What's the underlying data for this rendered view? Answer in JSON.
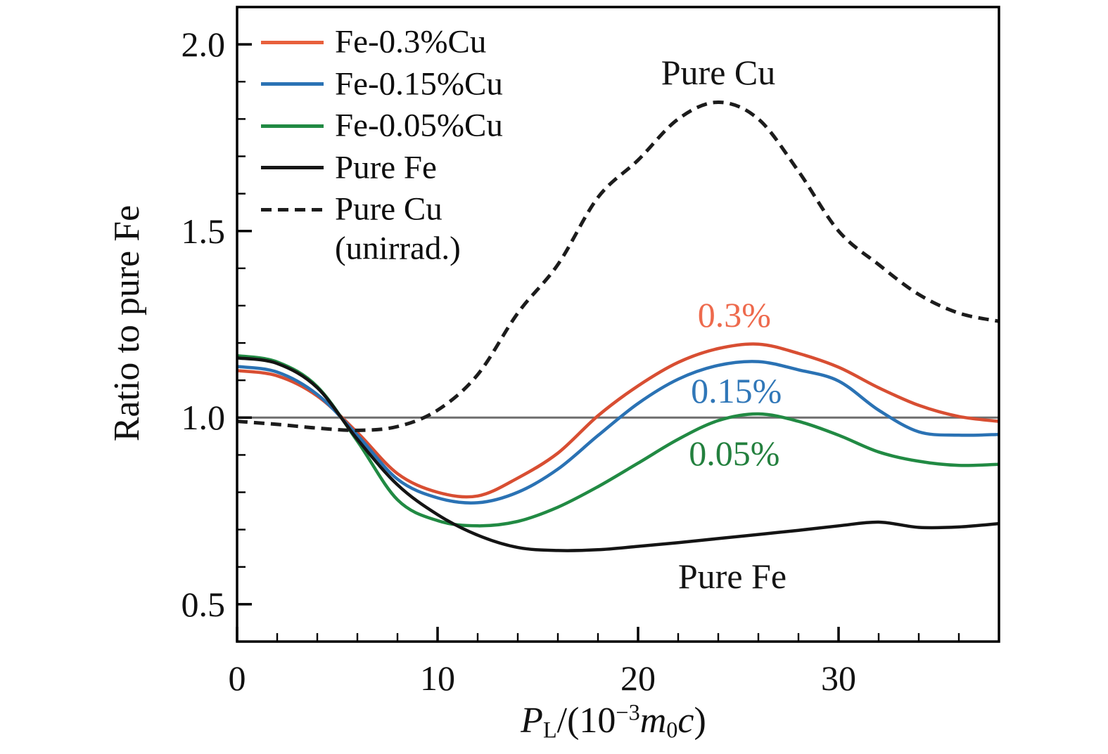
{
  "figure": {
    "background": "#ffffff",
    "x_axis": {
      "label_plain": "P_L/(10^-3 m_0 c)",
      "label_parts": [
        {
          "t": "P",
          "style": "italic"
        },
        {
          "t": "L",
          "style": "sub"
        },
        {
          "t": "/(10",
          "style": "normal"
        },
        {
          "t": "−3",
          "style": "sup"
        },
        {
          "t": "m",
          "style": "italic"
        },
        {
          "t": "0",
          "style": "sub"
        },
        {
          "t": "c",
          "style": "italic"
        },
        {
          "t": ")",
          "style": "normal"
        }
      ]
    }
  },
  "legend": {
    "items": [
      {
        "label": "Fe-0.3%Cu",
        "color": "#e8603c",
        "dash": false
      },
      {
        "label": "Fe-0.15%Cu",
        "color": "#2a72b4",
        "dash": false
      },
      {
        "label": "Fe-0.05%Cu",
        "color": "#218a43",
        "dash": false
      },
      {
        "label": "Pure Fe",
        "color": "#161616",
        "dash": false
      },
      {
        "label": "Pure Cu",
        "label2": "(unirrad.)",
        "color": "#1c1c1c",
        "dash": true
      }
    ]
  },
  "chart_data": {
    "type": "line",
    "title": "",
    "xlabel": "P_L/(10^-3 m_0 c)",
    "ylabel": "Ratio to pure Fe",
    "xlim": [
      0,
      38
    ],
    "ylim": [
      0.4,
      2.1
    ],
    "grid": false,
    "legend_position": "upper-left",
    "reference_line": {
      "y": 1.0,
      "color": "#6e6e6e"
    },
    "x_ticks": {
      "major": [
        0,
        10,
        20,
        30
      ],
      "labels": [
        "0",
        "10",
        "20",
        "30"
      ],
      "minor_step": 2
    },
    "y_ticks": {
      "major": [
        0.5,
        1.0,
        1.5,
        2.0
      ],
      "labels": [
        "0.5",
        "1.0",
        "1.5",
        "2.0"
      ],
      "minor_step": 0.1
    },
    "x": [
      0,
      2,
      4,
      6,
      8,
      10,
      12,
      14,
      16,
      18,
      20,
      22,
      24,
      26,
      28,
      30,
      32,
      34,
      36,
      38
    ],
    "series": [
      {
        "name": "Fe-0.3%Cu",
        "color": "#d84e32",
        "dash": false,
        "values": [
          1.126,
          1.112,
          1.058,
          0.96,
          0.85,
          0.8,
          0.79,
          0.838,
          0.905,
          1.005,
          1.085,
          1.148,
          1.185,
          1.197,
          1.172,
          1.135,
          1.08,
          1.033,
          1.003,
          0.99
        ]
      },
      {
        "name": "Fe-0.15%Cu",
        "color": "#2a72b4",
        "dash": false,
        "values": [
          1.137,
          1.122,
          1.062,
          0.953,
          0.835,
          0.785,
          0.772,
          0.8,
          0.862,
          0.952,
          1.038,
          1.103,
          1.14,
          1.15,
          1.128,
          1.098,
          1.02,
          0.962,
          0.953,
          0.955
        ]
      },
      {
        "name": "Fe-0.05%Cu",
        "color": "#218a43",
        "dash": false,
        "values": [
          1.166,
          1.149,
          1.083,
          0.937,
          0.78,
          0.724,
          0.71,
          0.722,
          0.76,
          0.815,
          0.878,
          0.942,
          0.992,
          1.01,
          0.99,
          0.953,
          0.908,
          0.883,
          0.872,
          0.875
        ]
      },
      {
        "name": "Pure Fe",
        "color": "#141414",
        "dash": false,
        "values": [
          1.16,
          1.145,
          1.08,
          0.942,
          0.82,
          0.74,
          0.685,
          0.652,
          0.644,
          0.646,
          0.655,
          0.665,
          0.676,
          0.687,
          0.698,
          0.71,
          0.72,
          0.706,
          0.707,
          0.716
        ]
      },
      {
        "name": "Pure Cu (unirrad.)",
        "color": "#1c1c1c",
        "dash": true,
        "values": [
          0.99,
          0.982,
          0.972,
          0.966,
          0.976,
          1.02,
          1.115,
          1.28,
          1.41,
          1.59,
          1.69,
          1.8,
          1.845,
          1.8,
          1.66,
          1.5,
          1.41,
          1.33,
          1.28,
          1.258
        ]
      }
    ],
    "annotations": [
      {
        "text": "Pure Cu",
        "x": 24.0,
        "y": 1.925,
        "color": "#141414"
      },
      {
        "text": "0.3%",
        "x": 24.8,
        "y": 1.275,
        "color": "#ee6a4d"
      },
      {
        "text": "0.15%",
        "x": 24.9,
        "y": 1.072,
        "color": "#3077b8"
      },
      {
        "text": "0.05%",
        "x": 24.8,
        "y": 0.905,
        "color": "#23803e"
      },
      {
        "text": "Pure Fe",
        "x": 24.7,
        "y": 0.575,
        "color": "#141414"
      }
    ]
  }
}
